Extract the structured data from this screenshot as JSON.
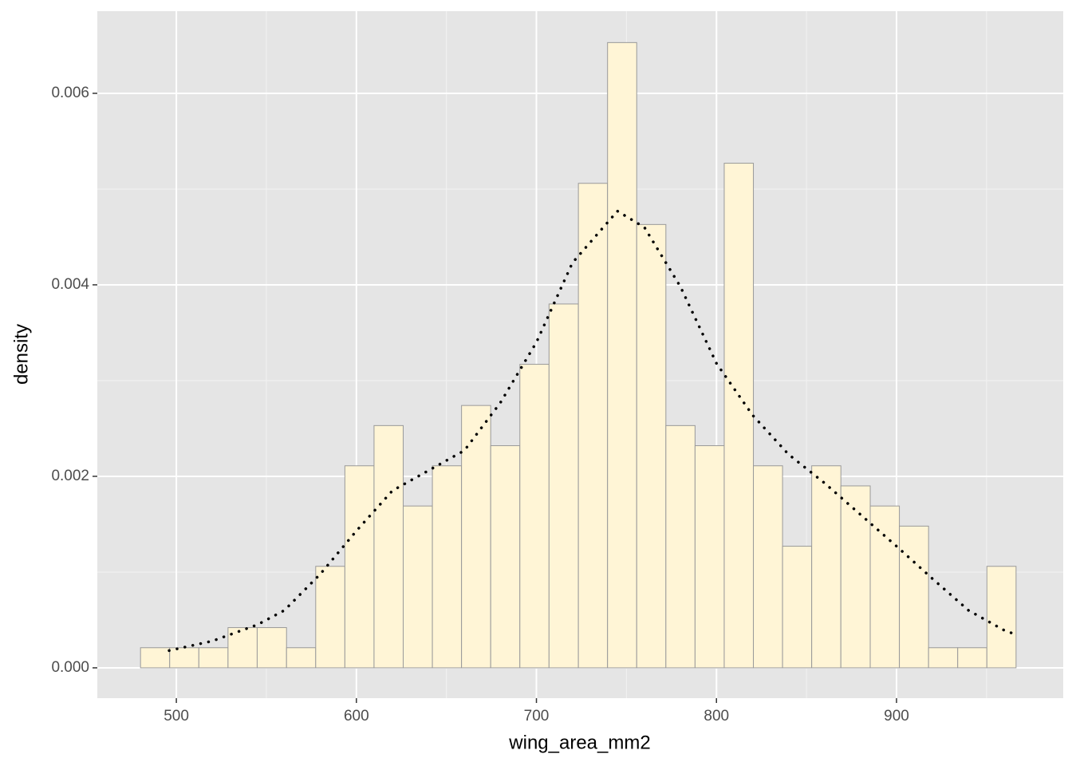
{
  "chart_data": {
    "type": "histogram",
    "x_label": "wing_area_mm2",
    "y_label": "density",
    "bins": [
      480.1,
      496.3,
      512.5,
      528.7,
      544.9,
      561.2,
      577.4,
      593.6,
      609.8,
      626.0,
      642.2,
      658.4,
      674.6,
      690.8,
      707.0,
      723.3,
      739.5,
      755.7,
      771.9,
      788.1,
      804.3,
      820.5,
      836.7,
      852.9,
      869.1,
      885.4,
      901.6,
      917.8,
      934.0,
      950.2,
      966.4
    ],
    "values": [
      0.00021,
      0.00021,
      0.00021,
      0.00042,
      0.00042,
      0.00021,
      0.00106,
      0.00211,
      0.00253,
      0.00169,
      0.00211,
      0.00274,
      0.00232,
      0.00317,
      0.0038,
      0.00506,
      0.00653,
      0.00463,
      0.00253,
      0.00232,
      0.00527,
      0.00211,
      0.00127,
      0.00211,
      0.0019,
      0.00169,
      0.00148,
      0.00021,
      0.00021,
      0.00106
    ],
    "color": "#fff5d6",
    "edge_color": "#999999",
    "density": {
      "x": [
        496,
        520,
        545,
        560,
        580,
        600,
        620,
        640,
        660,
        680,
        700,
        720,
        745,
        760,
        780,
        800,
        820,
        840,
        860,
        880,
        900,
        920,
        940,
        960,
        966
      ],
      "y": [
        0.00018,
        0.00028,
        0.00045,
        0.0006,
        0.00098,
        0.00143,
        0.00185,
        0.00206,
        0.00227,
        0.00277,
        0.0034,
        0.00423,
        0.00477,
        0.0046,
        0.00398,
        0.00318,
        0.00264,
        0.00223,
        0.00193,
        0.0016,
        0.00127,
        0.00093,
        0.0006,
        0.00039,
        0.00035
      ],
      "color": "#000000",
      "style": "dotted"
    },
    "xlim": [
      456.1,
      992.6
    ],
    "ylim": [
      -0.000317,
      0.006858
    ],
    "xticks": [
      500,
      600,
      700,
      800,
      900
    ],
    "yticks": [
      {
        "value": 0,
        "label": "0.000"
      },
      0.002,
      0.004,
      0.006
    ],
    "x_minor_ticks": [
      550,
      650,
      750,
      850,
      950
    ],
    "y_minor_ticks": [
      0.001,
      0.003,
      0.005
    ],
    "grid": true
  }
}
